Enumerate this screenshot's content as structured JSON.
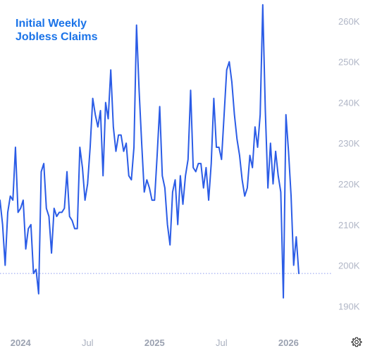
{
  "chart_data": {
    "type": "line",
    "title_lines": [
      "Initial Weekly",
      "Jobless Claims"
    ],
    "ylim": [
      186000,
      264000
    ],
    "y_ticks": [
      190000,
      200000,
      210000,
      220000,
      230000,
      240000,
      250000,
      260000
    ],
    "y_tick_labels": [
      "190K",
      "200K",
      "210K",
      "220K",
      "230K",
      "240K",
      "250K",
      "260K"
    ],
    "y_axis_position": "right",
    "x_tick_labels": [
      {
        "label": "2024",
        "major": true,
        "week": 8
      },
      {
        "label": "Jul",
        "major": false,
        "week": 34
      },
      {
        "label": "2025",
        "major": true,
        "week": 60
      },
      {
        "label": "Jul",
        "major": false,
        "week": 86
      },
      {
        "label": "2026",
        "major": true,
        "week": 112
      }
    ],
    "grid": false,
    "reference_line": {
      "value": 198000,
      "style": "dotted"
    },
    "series": [
      {
        "color": "#2b5ce6",
        "values": [
          216000,
          210000,
          200000,
          213000,
          217000,
          216000,
          229000,
          213000,
          214000,
          216000,
          204000,
          209000,
          210000,
          198000,
          199000,
          193000,
          223000,
          225000,
          214000,
          212000,
          203000,
          214000,
          212000,
          213000,
          213000,
          214000,
          223000,
          212000,
          211000,
          209000,
          209000,
          229000,
          224000,
          216000,
          220000,
          229000,
          241000,
          237000,
          234000,
          238000,
          222000,
          240000,
          236000,
          248000,
          234000,
          228000,
          232000,
          232000,
          228000,
          230000,
          222000,
          221000,
          229000,
          259000,
          243000,
          230000,
          218000,
          221000,
          219000,
          216000,
          216000,
          227000,
          239000,
          222000,
          219000,
          210000,
          205000,
          218000,
          221000,
          210000,
          222000,
          215000,
          222000,
          226000,
          243000,
          224000,
          223000,
          225000,
          225000,
          219000,
          224000,
          216000,
          225000,
          241000,
          229000,
          229000,
          226000,
          237000,
          248000,
          250000,
          245000,
          237000,
          231000,
          227000,
          221000,
          217000,
          219000,
          227000,
          224000,
          234000,
          229000,
          237000,
          264000,
          238000,
          219000,
          230000,
          220000,
          228000,
          222000,
          218000,
          192000,
          237000,
          228000,
          217000,
          200000,
          207000,
          198000
        ]
      }
    ]
  },
  "icons": {
    "settings": "gear-icon"
  }
}
